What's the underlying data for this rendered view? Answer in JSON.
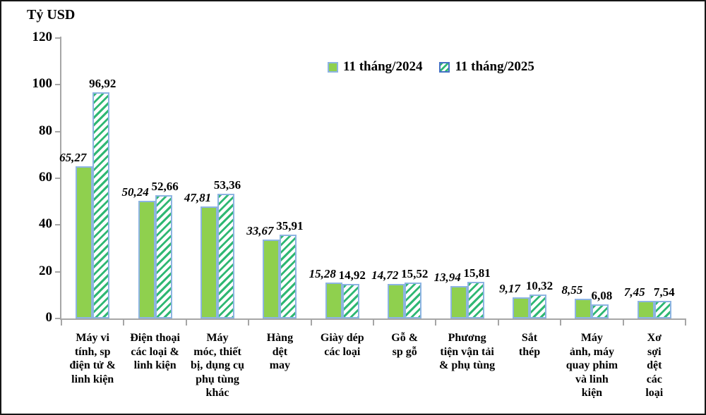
{
  "chart_data": {
    "type": "bar",
    "title": "Tỷ USD",
    "ylabel": "Tỷ USD",
    "xlabel": "",
    "ylim": [
      0,
      120
    ],
    "ytick_step": 20,
    "ytick_labels": [
      "0",
      "20",
      "40",
      "60",
      "80",
      "100",
      "120"
    ],
    "grid": false,
    "legend_position": "top-center",
    "decimal_separator": ",",
    "categories": [
      "Máy vi\ntính, sp\nđiện tử &\nlinh kiện",
      "Điện thoại\ncác loại &\nlinh kiện",
      "Máy\nmóc, thiết\nbị, dụng cụ\nphụ tùng\nkhác",
      "Hàng\ndệt\nmay",
      "Giày dép\ncác loại",
      "Gỗ &\nsp gỗ",
      "Phương\ntiện vận tải\n& phụ tùng",
      "Sắt\nthép",
      "Máy\nảnh, máy\nquay phim\nvà linh\nkiện",
      "Xơ\nsợi\ndệt\ncác\nloại"
    ],
    "series": [
      {
        "name": "11 tháng/2024",
        "style": "solid",
        "fill_color": "#8FD04E",
        "border_color": "#8DB4E2",
        "label_style": "bold-italic",
        "values": [
          65.27,
          50.24,
          47.81,
          33.67,
          15.28,
          14.72,
          13.94,
          9.17,
          8.55,
          7.45
        ]
      },
      {
        "name": "11 tháng/2025",
        "style": "diagonal-hatch",
        "fill_color": "#FFFFFF",
        "hatch_color": "#2FB873",
        "border_color": "#8DB4E2",
        "label_style": "bold",
        "values": [
          96.92,
          52.66,
          53.36,
          35.91,
          14.92,
          15.52,
          15.81,
          10.32,
          6.08,
          7.54
        ]
      }
    ],
    "colors": {
      "axis": "#A6A6A6",
      "text": "#000000",
      "frame_border": "#161616",
      "background": "#FFFFFF"
    }
  }
}
